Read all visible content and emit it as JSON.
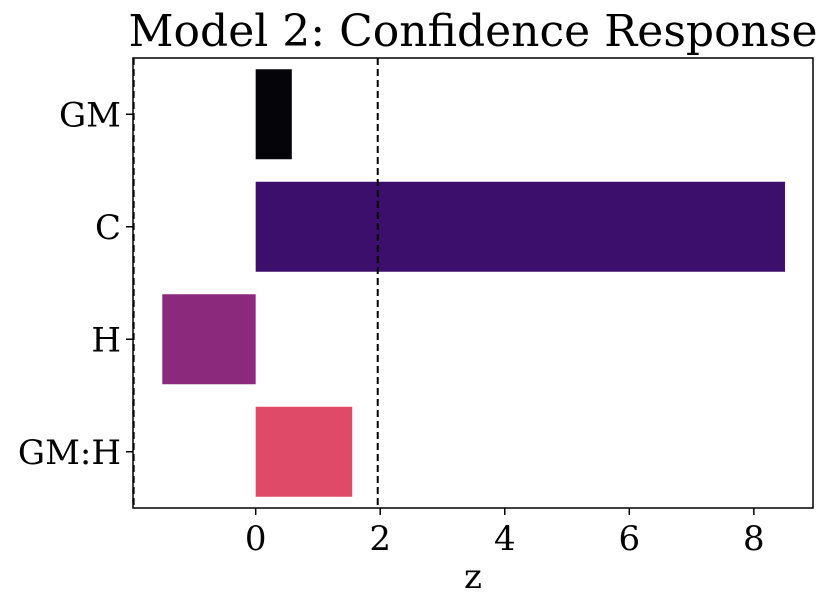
{
  "chart_data": {
    "type": "bar",
    "orientation": "horizontal",
    "title": "Model 2: Confidence Response",
    "xlabel": "z",
    "ylabel": "",
    "categories": [
      "GM",
      "C",
      "H",
      "GM:H"
    ],
    "values": [
      0.58,
      8.5,
      -1.5,
      1.55
    ],
    "colors": [
      "#050409",
      "#3d0f6c",
      "#8b2a7d",
      "#df4a68"
    ],
    "xlim": [
      -1.97,
      8.95
    ],
    "xticks": [
      0,
      2,
      4,
      6,
      8
    ],
    "xtick_labels": [
      "0",
      "2",
      "4",
      "6",
      "8"
    ],
    "reference_lines": [
      {
        "x": -1.96,
        "style": "dashed",
        "color": "#000000"
      },
      {
        "x": 1.96,
        "style": "dashed",
        "color": "#000000"
      }
    ],
    "grid": false,
    "legend": false
  }
}
